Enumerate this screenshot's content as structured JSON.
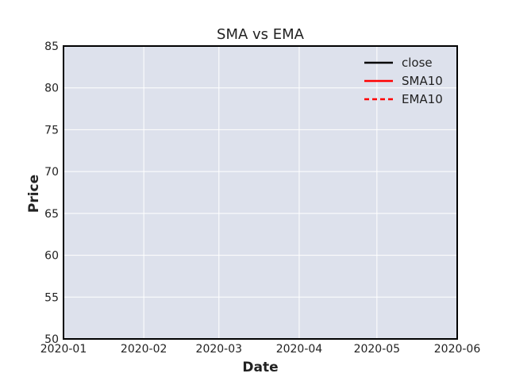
{
  "chart_data": {
    "type": "line",
    "title": "SMA vs EMA",
    "xlabel": "Date",
    "ylabel": "Price",
    "x_ticks": [
      "2020-01",
      "2020-02",
      "2020-03",
      "2020-04",
      "2020-05",
      "2020-06"
    ],
    "xlim": [
      "2020-01",
      "2020-06"
    ],
    "ylim": [
      50,
      85
    ],
    "y_ticks": [
      50,
      55,
      60,
      65,
      70,
      75,
      80,
      85
    ],
    "grid": true,
    "legend_position": "top-right",
    "series": [
      {
        "name": "close",
        "color": "#000000",
        "style": "solid",
        "values": []
      },
      {
        "name": "SMA10",
        "color": "#ff0000",
        "style": "solid",
        "values": []
      },
      {
        "name": "EMA10",
        "color": "#ff0000",
        "style": "dashed",
        "values": []
      }
    ],
    "colors": {
      "plot_background": "#dde1ec",
      "grid": "#ffffff",
      "axis": "#000000"
    }
  }
}
